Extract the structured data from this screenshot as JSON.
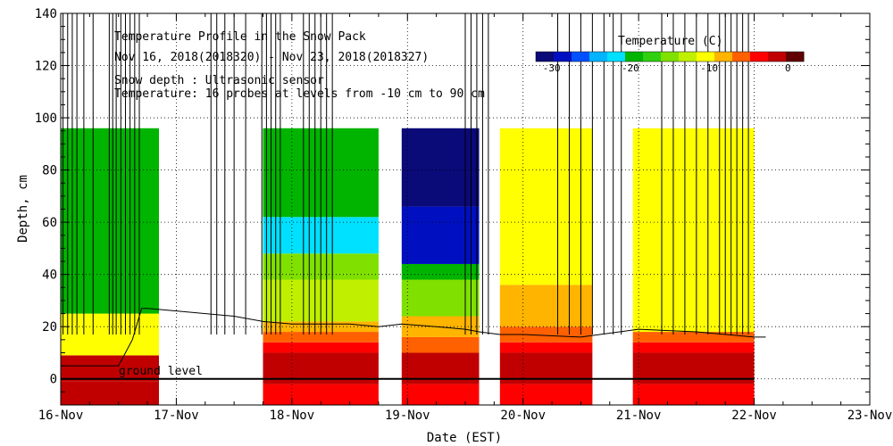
{
  "chart_data": {
    "type": "heatmap",
    "title": "Temperature Profile in the Snow Pack",
    "subtitle": "Nov 16, 2018(2018320) - Nov 23, 2018(2018327)",
    "annotations": [
      "Snow depth : Ultrasonic sensor",
      "Temperature: 16 probes at levels from -10 cm to 90 cm"
    ],
    "ground_label": "ground level",
    "xlabel": "Date (EST)",
    "ylabel": "Depth, cm",
    "x_ticks": [
      "16-Nov",
      "17-Nov",
      "18-Nov",
      "19-Nov",
      "20-Nov",
      "21-Nov",
      "22-Nov",
      "23-Nov"
    ],
    "xlim": [
      0,
      7
    ],
    "ylim": [
      -10,
      140
    ],
    "y_ticks": [
      0,
      20,
      40,
      60,
      80,
      100,
      120,
      140
    ],
    "grid": true,
    "colorbar": {
      "title": "Temperature (C)",
      "ticks": [
        "-30",
        "-20",
        "-10",
        "0"
      ],
      "range": [
        -32,
        2
      ],
      "colors": [
        "#0a0a78",
        "#0010c0",
        "#0050ff",
        "#00b4ff",
        "#00e0ff",
        "#00b400",
        "#30d010",
        "#80e000",
        "#c0f000",
        "#ffff00",
        "#ffb400",
        "#ff6000",
        "#ff0000",
        "#c00000",
        "#600000"
      ]
    },
    "temperature_profiles": [
      {
        "start": 0.0,
        "end": 0.85,
        "bands": [
          [
            -10,
            -1,
            -2
          ],
          [
            -1,
            9,
            -1
          ],
          [
            9,
            25,
            -10
          ],
          [
            25,
            96,
            -20
          ]
        ]
      },
      {
        "start": 1.75,
        "end": 2.75,
        "bands": [
          [
            -10,
            -2,
            -3
          ],
          [
            -2,
            10,
            -1
          ],
          [
            10,
            14,
            -4
          ],
          [
            14,
            18,
            -6
          ],
          [
            18,
            22,
            -8
          ],
          [
            22,
            38,
            -12
          ],
          [
            38,
            48,
            -16
          ],
          [
            48,
            62,
            -22
          ],
          [
            62,
            96,
            -20
          ]
        ]
      },
      {
        "start": 2.95,
        "end": 3.62,
        "bands": [
          [
            -10,
            -2,
            -3
          ],
          [
            -2,
            10,
            -1
          ],
          [
            10,
            16,
            -5
          ],
          [
            16,
            24,
            -9
          ],
          [
            24,
            38,
            -14
          ],
          [
            38,
            44,
            -20
          ],
          [
            44,
            66,
            -28
          ],
          [
            66,
            96,
            -30
          ]
        ]
      },
      {
        "start": 3.8,
        "end": 4.6,
        "bands": [
          [
            -10,
            -2,
            -3
          ],
          [
            -2,
            10,
            -1
          ],
          [
            10,
            14,
            -4
          ],
          [
            14,
            20,
            -6
          ],
          [
            20,
            36,
            -8
          ],
          [
            36,
            96,
            -11
          ]
        ]
      },
      {
        "start": 4.95,
        "end": 6.0,
        "bands": [
          [
            -10,
            -2,
            -3
          ],
          [
            -2,
            10,
            -1
          ],
          [
            10,
            14,
            -4
          ],
          [
            14,
            18,
            -7
          ],
          [
            18,
            96,
            -11
          ]
        ]
      }
    ],
    "snow_depth": {
      "x": [
        0.0,
        0.5,
        0.62,
        0.7,
        0.75,
        1.0,
        1.5,
        1.75,
        2.0,
        2.25,
        2.5,
        2.75,
        2.95,
        3.25,
        3.5,
        3.62,
        3.8,
        4.0,
        4.5,
        5.0,
        5.5,
        6.0,
        6.1
      ],
      "y": [
        5,
        5,
        15,
        27,
        27,
        26,
        24,
        22,
        21,
        21,
        21,
        20,
        21,
        20,
        19,
        18,
        17,
        17,
        16,
        19,
        18,
        16,
        16
      ]
    },
    "sensor_spikes_x": [
      0.02,
      0.06,
      0.1,
      0.14,
      0.2,
      0.28,
      0.42,
      0.45,
      0.48,
      0.52,
      0.56,
      0.6,
      0.64,
      0.68,
      1.3,
      1.35,
      1.42,
      1.5,
      1.6,
      1.74,
      1.78,
      1.82,
      1.86,
      1.9,
      2.1,
      2.15,
      2.2,
      2.25,
      2.3,
      2.35,
      3.5,
      3.55,
      3.6,
      3.65,
      3.7,
      4.3,
      4.4,
      4.5,
      4.6,
      4.7,
      4.78,
      4.85,
      5.2,
      5.3,
      5.4,
      5.5,
      5.6,
      5.7,
      5.75,
      5.8,
      5.85,
      5.9,
      5.95
    ]
  }
}
